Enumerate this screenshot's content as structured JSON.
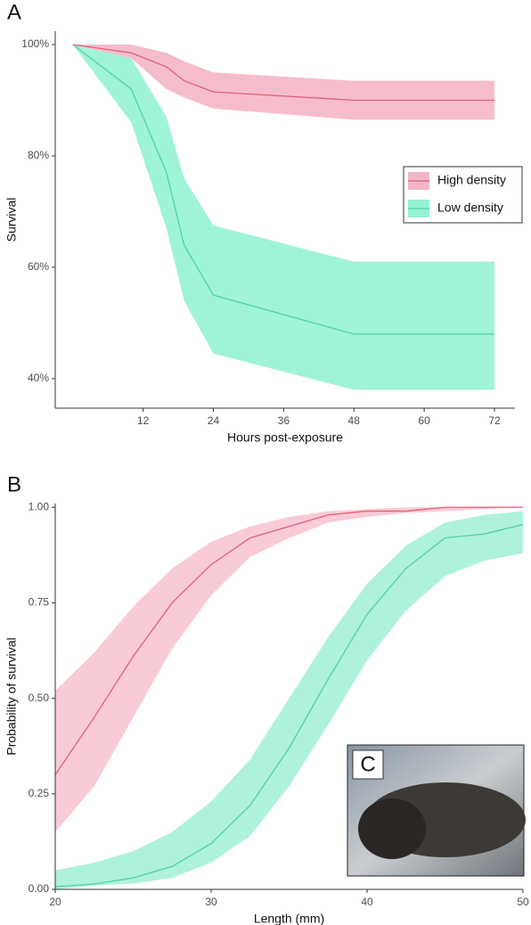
{
  "chart_data": [
    {
      "type": "line",
      "panel_label": "A",
      "x_label": "Hours post-exposure",
      "y_label": "Survival",
      "x": [
        0,
        10,
        16,
        19,
        24,
        48,
        72
      ],
      "xlim": [
        -3,
        75.5
      ],
      "xticks": [
        12,
        24,
        36,
        48,
        60,
        72
      ],
      "ylim": [
        34.7,
        102.4
      ],
      "yticks": [
        {
          "value": 40,
          "label": "40%"
        },
        {
          "value": 60,
          "label": "60%"
        },
        {
          "value": 80,
          "label": "80%"
        },
        {
          "value": 100,
          "label": "100%"
        }
      ],
      "legend": "right",
      "series": [
        {
          "name": "High density",
          "color": "#e0607a",
          "fill": "#f4b6c6",
          "values": [
            100,
            98.5,
            96,
            93.5,
            91.5,
            90,
            90
          ],
          "lower": [
            100,
            97.5,
            92,
            90.5,
            88.5,
            86.5,
            86.5
          ],
          "upper": [
            100,
            100,
            98.5,
            97,
            95,
            93.5,
            93.5
          ]
        },
        {
          "name": "Low density",
          "color": "#4fd2a8",
          "fill": "#95f2d4",
          "values": [
            100,
            92,
            77,
            64,
            55,
            48,
            48
          ],
          "lower": [
            100,
            86,
            67,
            54,
            44.5,
            38,
            38
          ],
          "upper": [
            100,
            97.5,
            87,
            76,
            67.5,
            61,
            61
          ]
        }
      ]
    },
    {
      "type": "line",
      "panel_label": "B",
      "x_label": "Length (mm)",
      "y_label": "Probability of survival",
      "inset_label": "C",
      "x": [
        20,
        22.5,
        25,
        27.5,
        30,
        32.5,
        35,
        37.5,
        40,
        42.5,
        45,
        47.5,
        50
      ],
      "xlim": [
        20,
        50
      ],
      "xticks": [
        20,
        30,
        40,
        50
      ],
      "ylim": [
        0,
        1.01
      ],
      "yticks": [
        {
          "value": 0,
          "label": "0.00"
        },
        {
          "value": 0.25,
          "label": "0.25"
        },
        {
          "value": 0.5,
          "label": "0.50"
        },
        {
          "value": 0.75,
          "label": "0.75"
        },
        {
          "value": 1,
          "label": "1.00"
        }
      ],
      "series": [
        {
          "color": "#e0607a",
          "fill": "#f7c5d1",
          "values": [
            0.3,
            0.45,
            0.61,
            0.75,
            0.85,
            0.92,
            0.95,
            0.98,
            0.99,
            0.99,
            1.0,
            1.0,
            1.0
          ],
          "lower": [
            0.15,
            0.27,
            0.45,
            0.63,
            0.77,
            0.87,
            0.92,
            0.96,
            0.975,
            0.985,
            0.99,
            0.995,
            1.0
          ],
          "upper": [
            0.52,
            0.62,
            0.74,
            0.84,
            0.91,
            0.95,
            0.975,
            0.99,
            0.995,
            1.0,
            1.0,
            1.0,
            1.0
          ]
        },
        {
          "color": "#4fd2a8",
          "fill": "#a6f1d8",
          "values": [
            0.007,
            0.014,
            0.03,
            0.06,
            0.12,
            0.22,
            0.37,
            0.55,
            0.72,
            0.84,
            0.92,
            0.93,
            0.955
          ],
          "lower": [
            0.0,
            0.01,
            0.015,
            0.03,
            0.07,
            0.14,
            0.27,
            0.43,
            0.6,
            0.73,
            0.82,
            0.86,
            0.88
          ],
          "upper": [
            0.05,
            0.07,
            0.1,
            0.15,
            0.23,
            0.34,
            0.5,
            0.66,
            0.8,
            0.9,
            0.96,
            0.98,
            0.99
          ]
        }
      ]
    }
  ]
}
